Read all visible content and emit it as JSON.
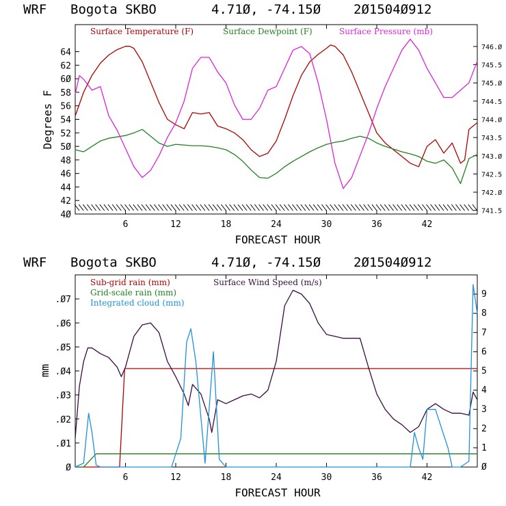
{
  "chart_data": [
    {
      "type": "line",
      "header": {
        "model": "WRF",
        "station": "Bogota SKBO",
        "coords": "4.71Ø, -74.15Ø",
        "init": "2Ø1504Ø912"
      },
      "xlabel": "FORECAST HOUR",
      "ylabel": "Degrees F",
      "xlim": [
        0,
        48
      ],
      "ylim": [
        40,
        68
      ],
      "y2lim": [
        741.4,
        746.6
      ],
      "xticks": [
        "6",
        "12",
        "18",
        "24",
        "30",
        "36",
        "42"
      ],
      "yticks": [
        "4Ø",
        "42",
        "44",
        "46",
        "48",
        "5Ø",
        "52",
        "54",
        "56",
        "58",
        "6Ø",
        "62",
        "64"
      ],
      "y2ticks": [
        "741.5",
        "742.Ø",
        "742.5",
        "743.Ø",
        "743.5",
        "744.Ø",
        "744.5",
        "745.Ø",
        "745.5",
        "746.Ø"
      ],
      "colors": {
        "temp": "#b00000",
        "dew": "#208020",
        "pres": "#dd22dd"
      },
      "series": [
        {
          "name": "Surface Temperature (F)",
          "color": "#b00000",
          "axis": "left",
          "x": [
            0,
            1,
            2,
            3,
            4,
            5,
            6,
            6.5,
            7,
            8,
            9,
            10,
            11,
            12,
            13,
            14,
            15,
            16,
            17,
            18,
            19,
            20,
            21,
            22,
            23,
            24,
            25,
            26,
            27,
            28,
            29,
            30,
            30.5,
            31,
            32,
            33,
            34,
            35,
            36,
            37,
            38,
            39,
            40,
            41,
            42,
            43,
            44,
            45,
            46,
            46.5,
            47,
            48
          ],
          "y": [
            54.5,
            58,
            60.5,
            62.3,
            63.5,
            64.3,
            64.8,
            64.8,
            64.5,
            62.5,
            59.5,
            56.5,
            54,
            53.2,
            52.6,
            55,
            54.8,
            55,
            53,
            52.6,
            52,
            51,
            49.5,
            48.5,
            49,
            50.8,
            54,
            57.5,
            60.5,
            62.5,
            63.6,
            64.5,
            65,
            64.8,
            63.5,
            61,
            58,
            55,
            52,
            50.5,
            49.5,
            48.5,
            47.5,
            47,
            50,
            51,
            49,
            50.5,
            47.5,
            48,
            52.5,
            53.5
          ]
        },
        {
          "name": "Surface Dewpoint (F)",
          "color": "#208020",
          "axis": "left",
          "x": [
            0,
            1,
            2,
            3,
            4,
            5,
            6,
            7,
            8,
            9,
            10,
            11,
            12,
            13,
            14,
            15,
            16,
            17,
            18,
            19,
            20,
            21,
            22,
            23,
            24,
            25,
            26,
            27,
            28,
            29,
            30,
            31,
            32,
            33,
            34,
            35,
            36,
            37,
            38,
            39,
            40,
            41,
            42,
            43,
            44,
            45,
            46,
            47,
            48
          ],
          "y": [
            49.5,
            49.2,
            50,
            50.8,
            51.2,
            51.4,
            51.6,
            52,
            52.5,
            51.5,
            50.5,
            50,
            50.3,
            50.2,
            50.1,
            50.1,
            50,
            49.8,
            49.5,
            48.8,
            47.8,
            46.5,
            45.4,
            45.3,
            46,
            47,
            47.8,
            48.5,
            49.2,
            49.8,
            50.3,
            50.6,
            50.8,
            51.2,
            51.5,
            51.2,
            50.5,
            50,
            49.6,
            49.2,
            48.9,
            48.5,
            47.8,
            47.5,
            48,
            46.8,
            44.5,
            48.2,
            48.8
          ]
        },
        {
          "name": "Surface Pressure (mb)",
          "color": "#dd22dd",
          "axis": "right",
          "x": [
            0,
            0.5,
            1,
            2,
            3,
            4,
            5,
            6,
            7,
            8,
            9,
            10,
            11,
            12,
            13,
            14,
            15,
            16,
            17,
            18,
            19,
            20,
            21,
            22,
            23,
            24,
            25,
            26,
            27,
            28,
            29,
            30,
            31,
            32,
            33,
            34,
            35,
            36,
            37,
            38,
            39,
            40,
            41,
            42,
            43,
            44,
            45,
            46,
            47,
            48
          ],
          "y": [
            744.7,
            745.2,
            745.1,
            744.8,
            744.9,
            744.1,
            743.7,
            743.2,
            742.7,
            742.4,
            742.6,
            743.0,
            743.5,
            743.9,
            744.5,
            745.4,
            745.7,
            745.7,
            745.3,
            745.0,
            744.4,
            744.0,
            744.0,
            744.3,
            744.8,
            744.9,
            745.4,
            745.9,
            746.0,
            745.8,
            745.0,
            744.0,
            742.8,
            742.1,
            742.4,
            743.0,
            743.6,
            744.3,
            744.9,
            745.4,
            745.9,
            746.2,
            745.9,
            745.4,
            745.0,
            744.6,
            744.6,
            744.8,
            745.0,
            745.6
          ]
        }
      ]
    },
    {
      "type": "line",
      "header": {
        "model": "WRF",
        "station": "Bogota SKBO",
        "coords": "4.71Ø, -74.15Ø",
        "init": "2Ø1504Ø912"
      },
      "xlabel": "FORECAST HOUR",
      "ylabel": "mm",
      "xlim": [
        0,
        48
      ],
      "ylim": [
        0,
        0.08
      ],
      "y2lim": [
        0,
        10
      ],
      "xticks": [
        "6",
        "12",
        "18",
        "24",
        "30",
        "36",
        "42"
      ],
      "yticks": [
        "Ø",
        ".Ø1",
        ".Ø2",
        ".Ø3",
        ".Ø4",
        ".Ø5",
        ".Ø6",
        ".Ø7"
      ],
      "y2ticks": [
        "Ø",
        "1",
        "2",
        "3",
        "4",
        "5",
        "6",
        "7",
        "8",
        "9"
      ],
      "colors": {
        "subgrid": "#b00000",
        "grid": "#208020",
        "cloud": "#1e90dd",
        "wind": "#3a0a40"
      },
      "series": [
        {
          "name": "Sub-grid rain (mm)",
          "color": "#b00000",
          "axis": "left",
          "x": [
            0,
            5.3,
            5.9,
            48
          ],
          "y": [
            0,
            0,
            0.041,
            0.041
          ]
        },
        {
          "name": "Surface Wind Speed (m/s)",
          "color": "#3a0a40",
          "axis": "right",
          "x": [
            0,
            0.5,
            1,
            1.5,
            2,
            3,
            4,
            5,
            5.5,
            6,
            7,
            8,
            9,
            10,
            11,
            12,
            13,
            13.5,
            14,
            15,
            16,
            16.3,
            17,
            18,
            19,
            20,
            21,
            22,
            23,
            24,
            25,
            26,
            27,
            28,
            29,
            30,
            31,
            32,
            33,
            34,
            35,
            36,
            37,
            38,
            39,
            40,
            41,
            42,
            43,
            44,
            45,
            46,
            47,
            47.5,
            48
          ],
          "y": [
            1.5,
            4.2,
            5.5,
            6.2,
            6.2,
            5.9,
            5.7,
            5.2,
            4.7,
            5.2,
            6.8,
            7.4,
            7.5,
            7.0,
            5.5,
            4.7,
            3.8,
            3.2,
            4.3,
            3.8,
            2.5,
            1.8,
            3.5,
            3.3,
            3.5,
            3.7,
            3.8,
            3.6,
            4.0,
            5.5,
            8.4,
            9.2,
            9.0,
            8.5,
            7.5,
            6.9,
            6.8,
            6.7,
            6.7,
            6.7,
            5.2,
            3.8,
            3.0,
            2.5,
            2.2,
            1.8,
            2.1,
            3.0,
            3.3,
            3.0,
            2.8,
            2.8,
            2.7,
            3.9,
            3.5
          ]
        },
        {
          "name": "Grid-scale rain (mm)",
          "color": "#208020",
          "axis": "left",
          "x": [
            0,
            1,
            2.5,
            48
          ],
          "y": [
            0,
            0,
            0.0055,
            0.0055
          ]
        },
        {
          "name": "Integrated cloud (mm)",
          "color": "#1e90dd",
          "axis": "right",
          "x": [
            0,
            1,
            1.6,
            2,
            2.5,
            3,
            11.5,
            12.6,
            13.3,
            13.8,
            14.4,
            15.5,
            16.5,
            17.2,
            18,
            22,
            40,
            40.5,
            41,
            41.5,
            42,
            43,
            44.5,
            45,
            46,
            47,
            47.5,
            48
          ],
          "y": [
            0,
            0.2,
            2.8,
            1.8,
            0.1,
            0,
            0,
            1.5,
            6.5,
            7.2,
            5.5,
            0.2,
            6,
            0.4,
            0,
            0,
            0,
            1.8,
            1,
            0.4,
            3,
            3,
            1,
            0,
            0,
            0.3,
            9.5,
            8
          ]
        }
      ]
    }
  ]
}
